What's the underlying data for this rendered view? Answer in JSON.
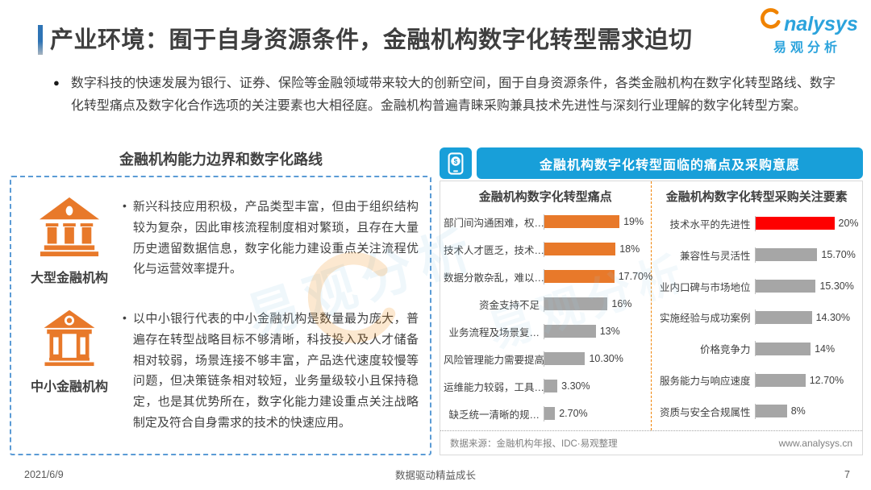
{
  "header": {
    "title": "产业环境：囿于自身资源条件，金融机构数字化转型需求迫切",
    "logo_brand": "nalysys",
    "logo_cn": "易观分析"
  },
  "intro": {
    "bullet": "●",
    "text": "数字科技的快速发展为银行、证券、保险等金融领域带来较大的创新空间，囿于自身资源条件，各类金融机构在数字化转型路线、数字化转型痛点及数字化合作选项的关注要素也大相径庭。金融机构普遍青睐采购兼具技术先进性与深刻行业理解的数字化转型方案。"
  },
  "watermark": "易观分析",
  "left_panel": {
    "title": "金融机构能力边界和数字化路线",
    "items": [
      {
        "bullet": "•",
        "icon": "bank-large-icon",
        "label": "大型金融机构",
        "text": "新兴科技应用积极，产品类型丰富，但由于组织结构较为复杂，因此审核流程制度相对繁琐，且存在大量历史遗留数据信息，数字化能力建设重点关注流程优化与运营效率提升。"
      },
      {
        "bullet": "•",
        "icon": "bank-small-icon",
        "label": "中小金融机构",
        "text": "以中小银行代表的中小金融机构是数量最为庞大，普遍存在转型战略目标不够清晰，科技投入及人才储备相对较弱，场景连接不够丰富，产品迭代速度较慢等问题，但决策链条相对较短，业务量级较小且保持稳定，也是其优势所在，数字化能力建设重点关注战略制定及符合自身需求的技术的快速应用。"
      }
    ]
  },
  "right_panel": {
    "banner": "金融机构数字化转型面临的痛点及采购意愿",
    "source": "数据来源：金融机构年报、IDC·易观整理",
    "website": "www.analysys.cn"
  },
  "chart_data": [
    {
      "type": "bar",
      "orientation": "horizontal",
      "title": "金融机构数字化转型痛点",
      "categories": [
        "部门间沟通困难，权…",
        "技术人才匮乏，技术…",
        "数据分散杂乱，难以…",
        "资金支持不足",
        "业务流程及场景复…",
        "风险管理能力需要提高",
        "运维能力较弱，工具…",
        "缺乏统一清晰的规…"
      ],
      "values": [
        19,
        18,
        17.7,
        16,
        13,
        10.3,
        3.3,
        2.7
      ],
      "value_labels": [
        "19%",
        "18%",
        "17.70%",
        "16%",
        "13%",
        "10.30%",
        "3.30%",
        "2.70%"
      ],
      "bar_colors": [
        "#e8792a",
        "#e8792a",
        "#e8792a",
        "#a6a6a6",
        "#a6a6a6",
        "#a6a6a6",
        "#a6a6a6",
        "#a6a6a6"
      ],
      "xlim": [
        0,
        20
      ],
      "grid": false,
      "legend": false
    },
    {
      "type": "bar",
      "orientation": "horizontal",
      "title": "金融机构数字化转型采购关注要素",
      "categories": [
        "技术水平的先进性",
        "兼容性与灵活性",
        "业内口碑与市场地位",
        "实施经验与成功案例",
        "价格竞争力",
        "服务能力与响应速度",
        "资质与安全合规属性"
      ],
      "values": [
        20,
        15.7,
        15.3,
        14.3,
        14,
        12.7,
        8
      ],
      "value_labels": [
        "20%",
        "15.70%",
        "15.30%",
        "14.30%",
        "14%",
        "12.70%",
        "8%"
      ],
      "bar_colors": [
        "#fe0000",
        "#a6a6a6",
        "#a6a6a6",
        "#a6a6a6",
        "#a6a6a6",
        "#a6a6a6",
        "#a6a6a6"
      ],
      "xlim": [
        0,
        20
      ],
      "grid": false,
      "legend": false
    }
  ],
  "footer": {
    "date": "2021/6/9",
    "slogan": "数据驱动精益成长",
    "page": "7"
  },
  "colors": {
    "accent_blue": "#2e74b5",
    "banner_blue": "#189fd9",
    "box_border_blue": "#5b9bd5",
    "orange": "#e8792a",
    "red": "#fe0000",
    "gray_bar": "#a6a6a6",
    "divider_orange": "#f08300"
  }
}
